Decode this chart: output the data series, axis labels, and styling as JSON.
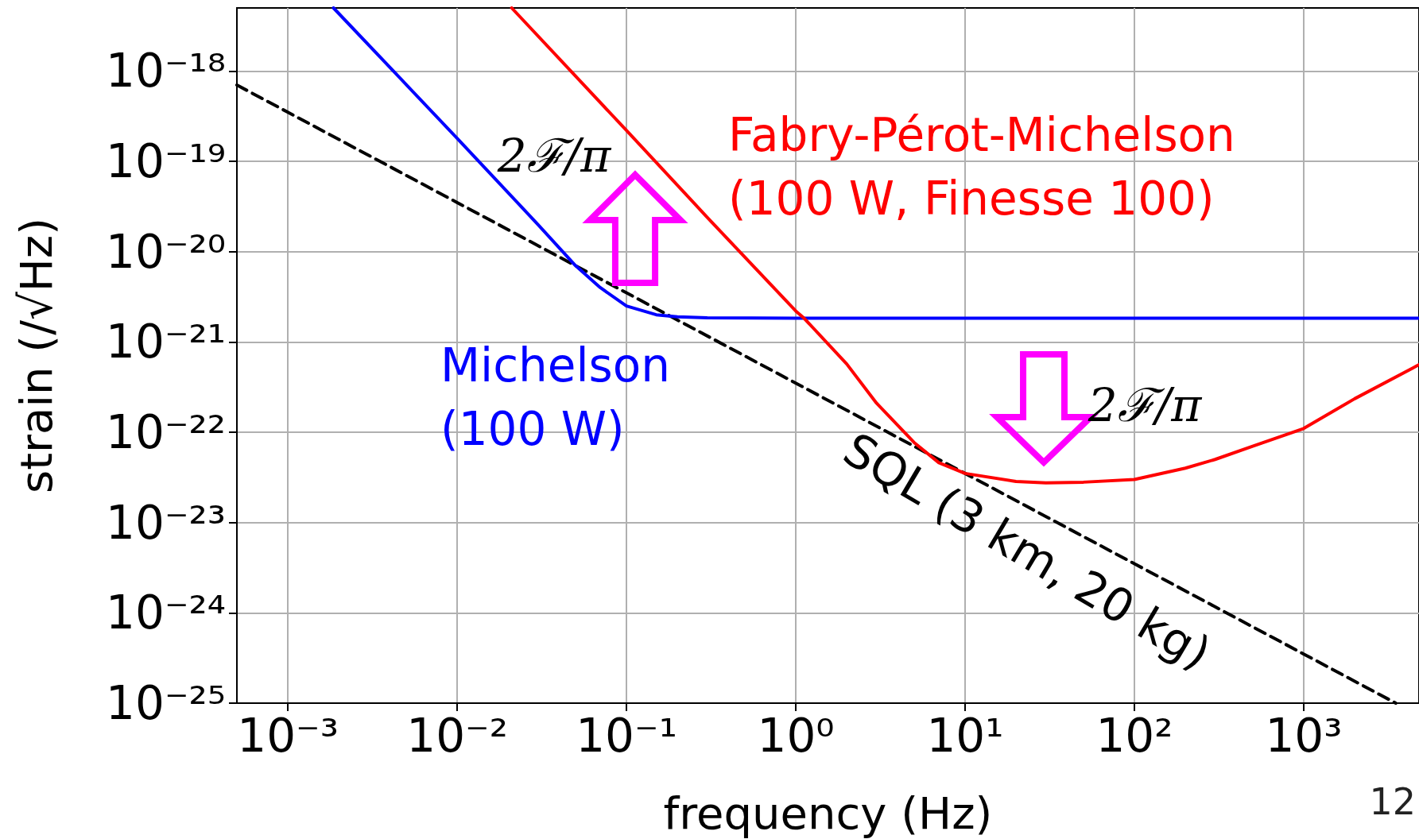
{
  "chart_data": {
    "type": "line",
    "xlabel": "frequency (Hz)",
    "ylabel": "strain (/√Hz)",
    "log": "xy",
    "grid": true,
    "marker": "none",
    "xlim": [
      0.0005,
      4800
    ],
    "ylim": [
      1e-25,
      5e-18
    ],
    "xticks": [
      {
        "value": 0.001,
        "label": "10⁻³"
      },
      {
        "value": 0.01,
        "label": "10⁻²"
      },
      {
        "value": 0.1,
        "label": "10⁻¹"
      },
      {
        "value": 1,
        "label": "10⁰"
      },
      {
        "value": 10,
        "label": "10¹"
      },
      {
        "value": 100,
        "label": "10²"
      },
      {
        "value": 1000,
        "label": "10³"
      }
    ],
    "yticks": [
      {
        "value": 1e-25,
        "label": "10⁻²⁵"
      },
      {
        "value": 1e-24,
        "label": "10⁻²⁴"
      },
      {
        "value": 1e-23,
        "label": "10⁻²³"
      },
      {
        "value": 1e-22,
        "label": "10⁻²²"
      },
      {
        "value": 1e-21,
        "label": "10⁻²¹"
      },
      {
        "value": 1e-20,
        "label": "10⁻²⁰"
      },
      {
        "value": 1e-19,
        "label": "10⁻¹⁹"
      },
      {
        "value": 1e-18,
        "label": "10⁻¹⁸"
      }
    ],
    "series": [
      {
        "name": "SQL (3 km, 20 kg)",
        "color": "#000000",
        "line_style": "dashed",
        "x": [
          0.0005,
          0.001,
          0.01,
          0.1,
          1,
          10,
          100,
          1000,
          3500
        ],
        "values": [
          7e-19,
          3.5e-19,
          3.5e-20,
          3.5e-21,
          3.5e-22,
          3.5e-23,
          3.5e-24,
          3.5e-25,
          1e-25
        ]
      },
      {
        "name": "Michelson\n(100 W)",
        "color": "#0000ff",
        "line_style": "solid",
        "x": [
          0.00186,
          0.01,
          0.03,
          0.05,
          0.07,
          0.1,
          0.15,
          0.2,
          0.3,
          1,
          10,
          100,
          1000,
          4800
        ],
        "values": [
          5e-18,
          1.8e-19,
          2e-20,
          7e-21,
          4e-21,
          2.5e-21,
          2e-21,
          1.9e-21,
          1.85e-21,
          1.83e-21,
          1.83e-21,
          1.83e-21,
          1.83e-21,
          1.83e-21
        ]
      },
      {
        "name": "Fabry-Pérot-Michelson\n(100 W, Finesse 100)",
        "color": "#ff0000",
        "line_style": "solid",
        "x": [
          0.021,
          0.1,
          0.3,
          1,
          1.12,
          2,
          3,
          5,
          7,
          10,
          20,
          30,
          50,
          100,
          200,
          300,
          500,
          1000,
          2000,
          4800
        ],
        "values": [
          5e-18,
          2.2e-19,
          2.4e-20,
          2.2e-21,
          1.83e-21,
          5.7e-22,
          2.1e-22,
          7.7e-23,
          4.6e-23,
          3.5e-23,
          2.85e-23,
          2.75e-23,
          2.8e-23,
          3e-23,
          4e-23,
          5e-23,
          7e-23,
          1.1e-22,
          2.35e-22,
          5.6e-22
        ]
      }
    ],
    "annotations": [
      "2ℱ/π",
      "2ℱ/π",
      "12"
    ]
  }
}
